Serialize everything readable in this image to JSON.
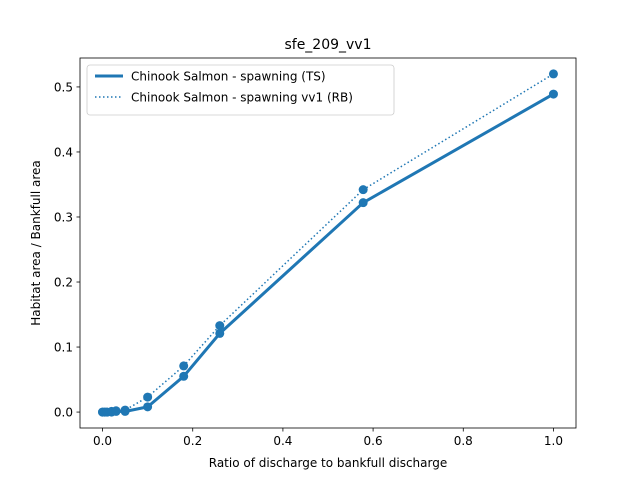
{
  "chart_data": {
    "type": "line",
    "title": "sfe_209_vv1",
    "xlabel": "Ratio of discharge to bankfull discharge",
    "ylabel": "Habitat area / Bankfull area",
    "xlim": [
      -0.05,
      1.05
    ],
    "ylim": [
      -0.0245,
      0.5445
    ],
    "xticks": [
      {
        "value": 0.0,
        "label": "0.0"
      },
      {
        "value": 0.2,
        "label": "0.2"
      },
      {
        "value": 0.4,
        "label": "0.4"
      },
      {
        "value": 0.6,
        "label": "0.6"
      },
      {
        "value": 0.8,
        "label": "0.8"
      },
      {
        "value": 1.0,
        "label": "1.0"
      }
    ],
    "yticks": [
      {
        "value": 0.0,
        "label": "0.0"
      },
      {
        "value": 0.1,
        "label": "0.1"
      },
      {
        "value": 0.2,
        "label": "0.2"
      },
      {
        "value": 0.3,
        "label": "0.3"
      },
      {
        "value": 0.4,
        "label": "0.4"
      },
      {
        "value": 0.5,
        "label": "0.5"
      }
    ],
    "grid": false,
    "legend_position": "top-left",
    "series": [
      {
        "name": "Chinook Salmon - spawning (TS)",
        "style": "solid",
        "color": "#1f77b4",
        "x": [
          0.0,
          0.005,
          0.01,
          0.02,
          0.03,
          0.05,
          0.1,
          0.18,
          0.26,
          0.578,
          1.0
        ],
        "y": [
          0.0,
          0.0,
          0.0,
          0.0,
          0.001,
          0.001,
          0.008,
          0.055,
          0.121,
          0.322,
          0.489
        ]
      },
      {
        "name": "Chinook Salmon - spawning vv1 (RB)",
        "style": "dotted",
        "color": "#1f77b4",
        "x": [
          0.0,
          0.005,
          0.01,
          0.02,
          0.03,
          0.05,
          0.1,
          0.18,
          0.26,
          0.578,
          1.0
        ],
        "y": [
          0.0,
          0.0,
          0.0,
          0.001,
          0.002,
          0.003,
          0.023,
          0.071,
          0.133,
          0.342,
          0.52
        ]
      }
    ]
  }
}
